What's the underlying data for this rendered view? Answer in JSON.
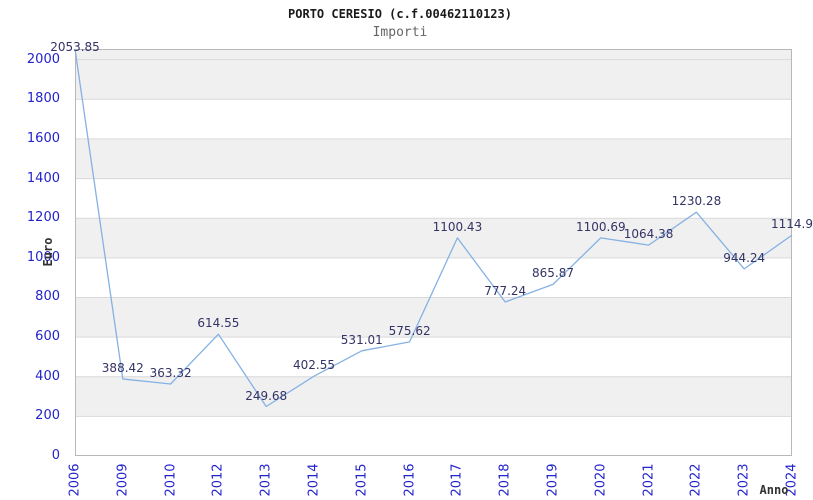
{
  "header": {
    "title": "PORTO CERESIO (c.f.00462110123)",
    "subtitle": "Importi"
  },
  "chart_data": {
    "type": "line",
    "title": "PORTO CERESIO (c.f.00462110123)",
    "subtitle": "Importi",
    "xlabel": "Anno",
    "ylabel": "Euro",
    "categories": [
      "2006",
      "2009",
      "2010",
      "2012",
      "2013",
      "2014",
      "2015",
      "2016",
      "2017",
      "2018",
      "2019",
      "2020",
      "2021",
      "2022",
      "2023",
      "2024"
    ],
    "values": [
      2053.85,
      388.42,
      363.32,
      614.55,
      249.68,
      402.55,
      531.01,
      575.62,
      1100.43,
      777.24,
      865.87,
      1100.69,
      1064.38,
      1230.28,
      944.24,
      1114.9
    ],
    "point_labels": [
      "2053.85",
      "388.42",
      "363.32",
      "614.55",
      "249.68",
      "402.55",
      "531.01",
      "575.62",
      "1100.43",
      "777.24",
      "865.87",
      "1100.69",
      "1064.38",
      "1230.28",
      "944.24",
      "1114.9"
    ],
    "yticks": [
      0,
      200,
      400,
      600,
      800,
      1000,
      1200,
      1400,
      1600,
      1800,
      2000
    ],
    "ylim": [
      0,
      2053.85
    ],
    "legend": "none",
    "grid": "horizontal-bands",
    "colors": {
      "line": "#85b1e3",
      "tick_label": "#2323cc",
      "point_label": "#333366",
      "band_gray": "#f0f0f0",
      "band_white": "#ffffff",
      "grid_line": "#d9d9d9",
      "plot_border": "#b8b8b8",
      "title": "#1a1a1a",
      "subtitle": "#666666",
      "axis_title": "#333333"
    }
  }
}
